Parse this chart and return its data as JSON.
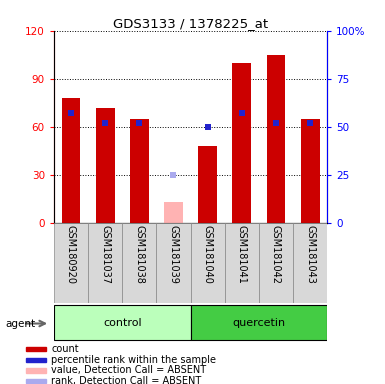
{
  "title": "GDS3133 / 1378225_at",
  "samples": [
    "GSM180920",
    "GSM181037",
    "GSM181038",
    "GSM181039",
    "GSM181040",
    "GSM181041",
    "GSM181042",
    "GSM181043"
  ],
  "count_values": [
    78,
    72,
    65,
    null,
    48,
    100,
    105,
    65
  ],
  "count_absent": [
    null,
    null,
    null,
    13,
    null,
    null,
    null,
    null
  ],
  "rank_present": [
    57,
    52,
    52,
    null,
    50,
    57,
    52,
    52
  ],
  "rank_absent": [
    null,
    null,
    null,
    25,
    null,
    null,
    null,
    null
  ],
  "ylim_left": [
    0,
    120
  ],
  "ylim_right": [
    0,
    100
  ],
  "yticks_left": [
    0,
    30,
    60,
    90,
    120
  ],
  "yticks_right": [
    0,
    25,
    50,
    75,
    100
  ],
  "ytick_labels_left": [
    "0",
    "30",
    "60",
    "90",
    "120"
  ],
  "ytick_labels_right": [
    "0",
    "25",
    "50",
    "75",
    "100%"
  ],
  "count_color": "#cc0000",
  "count_absent_color": "#ffb3b3",
  "rank_color": "#2222cc",
  "rank_absent_color": "#aaaaee",
  "control_color": "#bbffbb",
  "quercetin_color": "#44cc44",
  "legend_items": [
    {
      "label": "count",
      "color": "#cc0000"
    },
    {
      "label": "percentile rank within the sample",
      "color": "#2222cc"
    },
    {
      "label": "value, Detection Call = ABSENT",
      "color": "#ffb3b3"
    },
    {
      "label": "rank, Detection Call = ABSENT",
      "color": "#aaaaee"
    }
  ]
}
